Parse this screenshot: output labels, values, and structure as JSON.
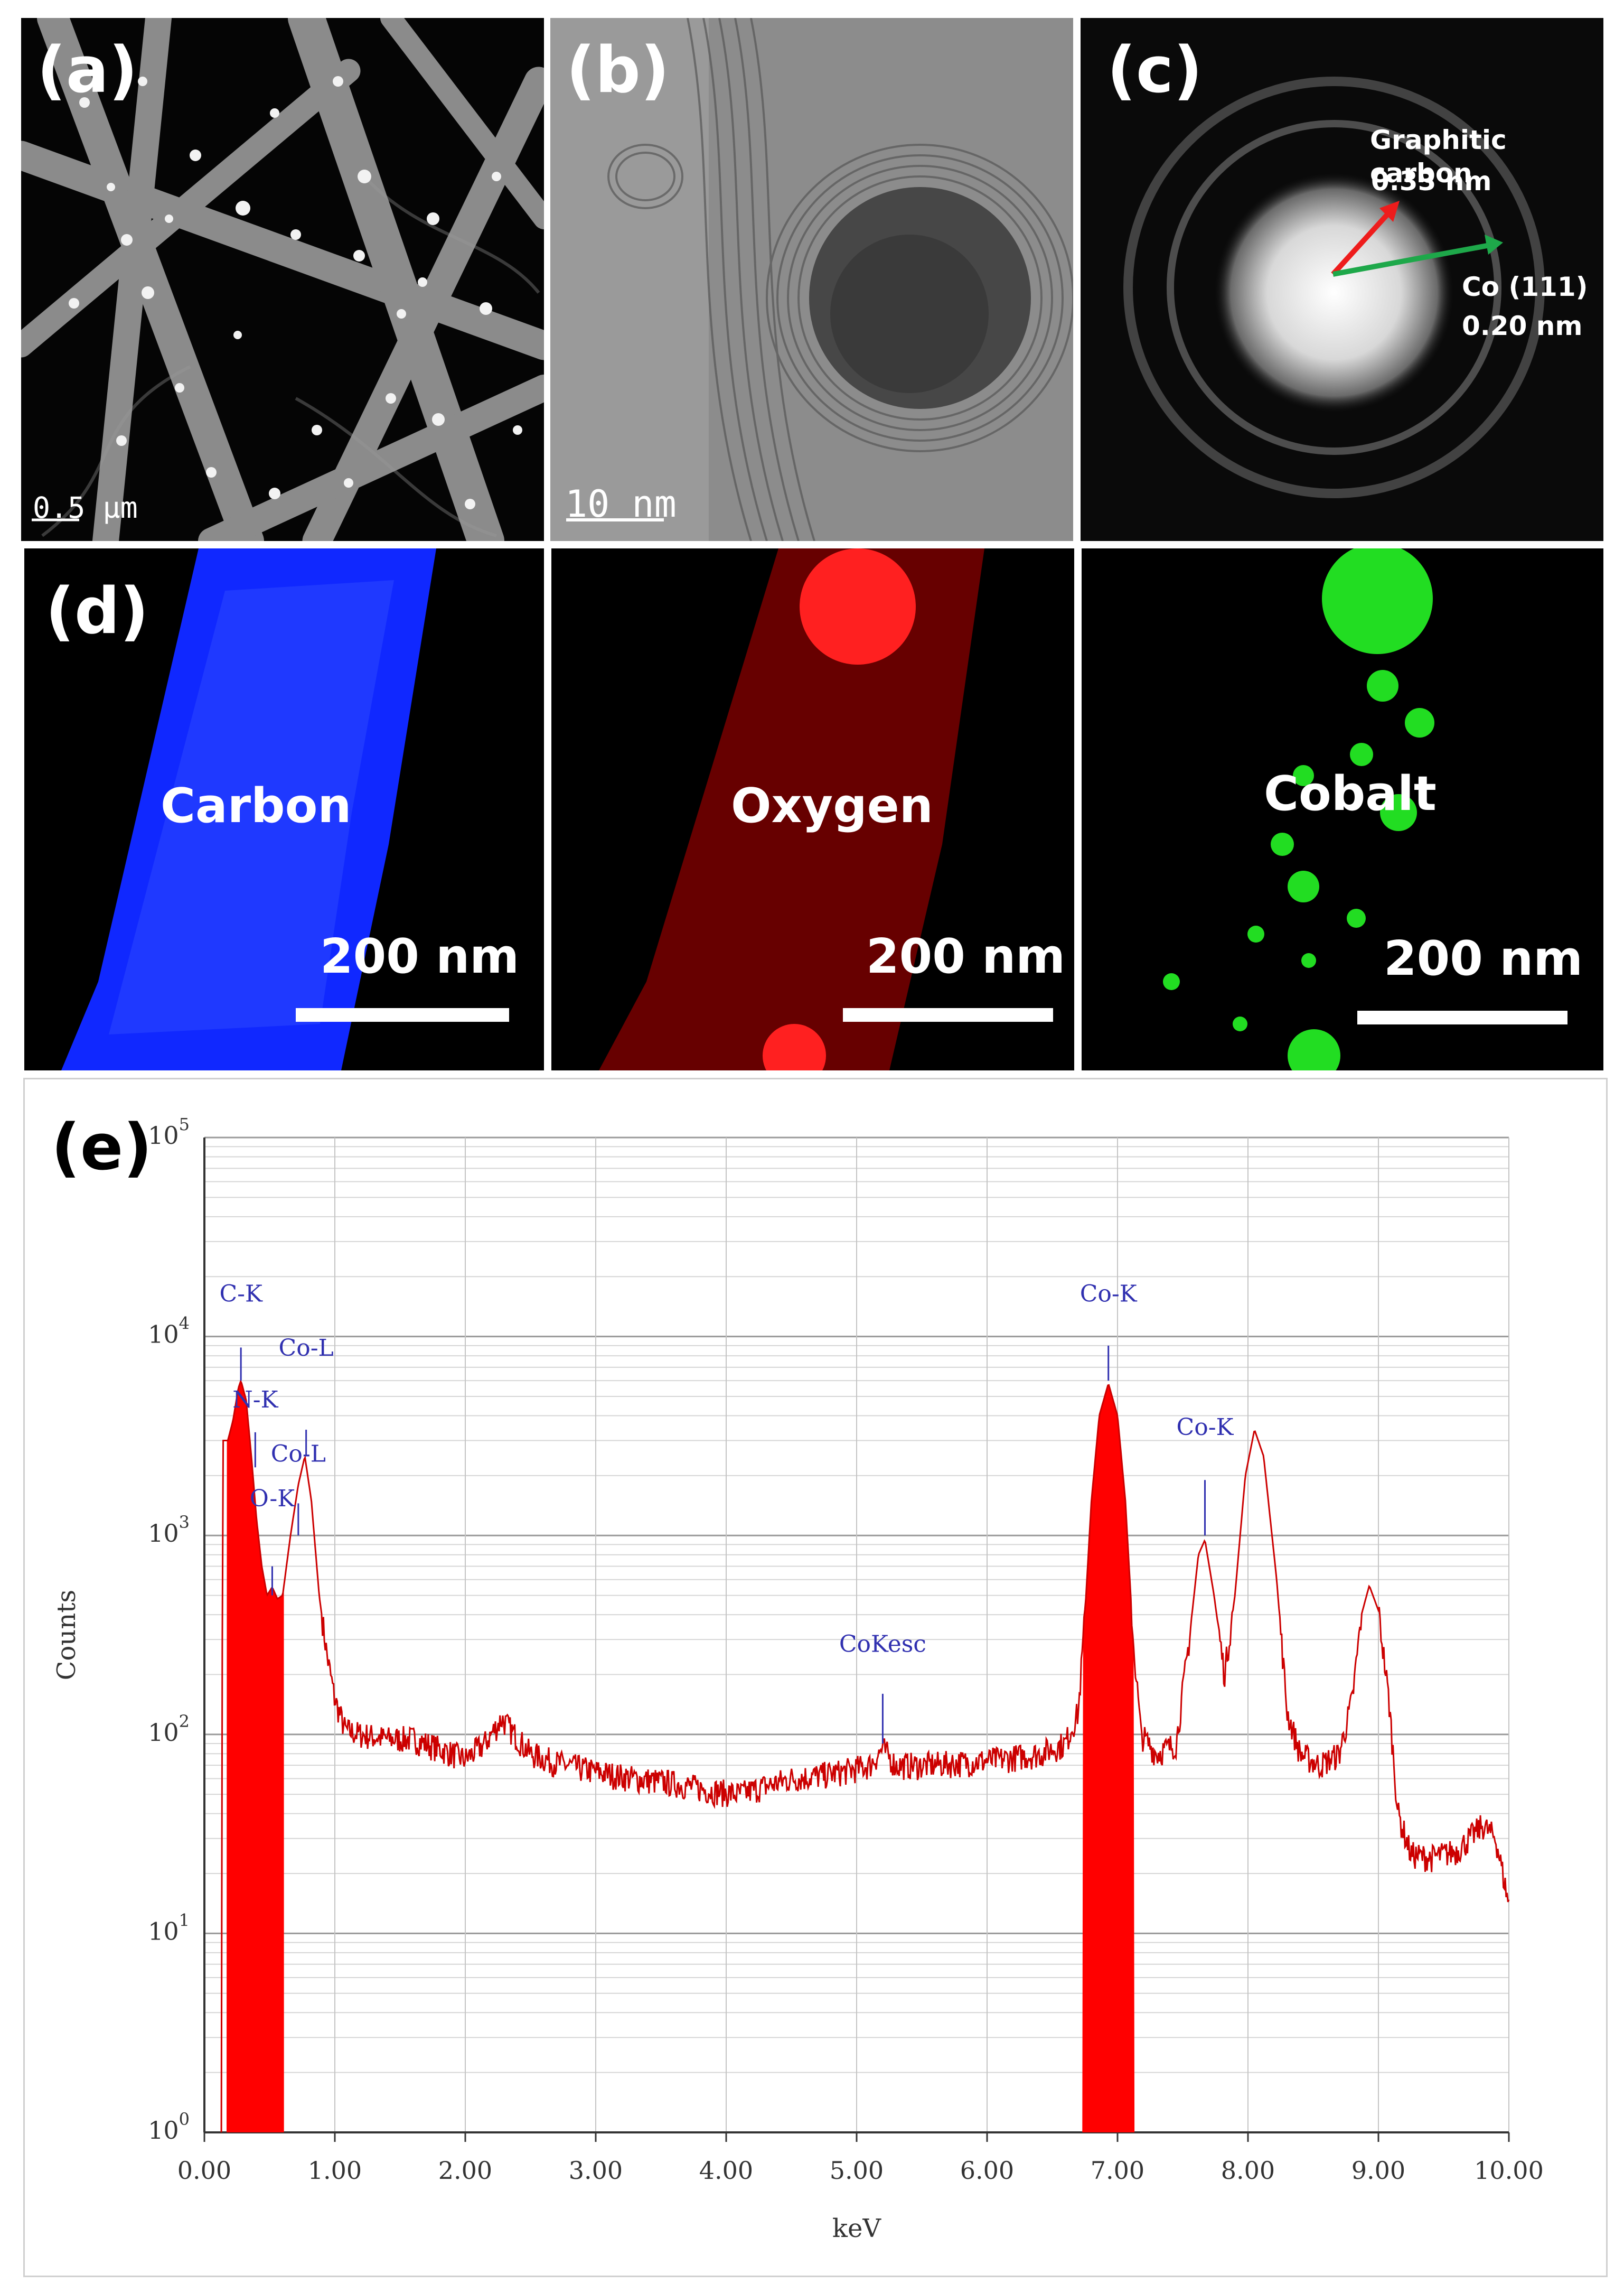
{
  "panels": {
    "a": {
      "label": "(a)",
      "scale_text": "0.5 μm"
    },
    "b": {
      "label": "(b)",
      "scale_text": "10 nm"
    },
    "c": {
      "label": "(c)",
      "annot_graphitic": "Graphitic carbon",
      "annot_graphitic_d": "0.33 nm",
      "annot_co": "Co (111)",
      "annot_co_d": "0.20 nm"
    },
    "d": {
      "label": "(d)",
      "carbon": "Carbon",
      "oxygen": "Oxygen",
      "cobalt": "Cobalt",
      "scale": "200 nm"
    },
    "e": {
      "label": "(e)"
    }
  },
  "colors": {
    "spectrum": "#cc0000",
    "fill": "#ff0000",
    "peak_labels": "#3030b0",
    "carbon_map": "#1028ff",
    "oxygen_map": "#ff2020",
    "cobalt_map": "#22dd22"
  },
  "chart_data": {
    "type": "line",
    "yscale": "log",
    "xlabel": "keV",
    "ylabel": "Counts",
    "xlim": [
      0,
      10
    ],
    "ylim": [
      1,
      100000
    ],
    "x_ticks": [
      "0.00",
      "1.00",
      "2.00",
      "3.00",
      "4.00",
      "5.00",
      "6.00",
      "7.00",
      "8.00",
      "9.00",
      "10.00"
    ],
    "y_ticks": [
      {
        "base": "10",
        "exp": "0"
      },
      {
        "base": "10",
        "exp": "1"
      },
      {
        "base": "10",
        "exp": "2"
      },
      {
        "base": "10",
        "exp": "3"
      },
      {
        "base": "10",
        "exp": "4"
      },
      {
        "base": "10",
        "exp": "5"
      }
    ],
    "grid": true,
    "spectrum_points": [
      [
        0.13,
        1
      ],
      [
        0.14,
        3000
      ],
      [
        0.18,
        3000
      ],
      [
        0.22,
        3800
      ],
      [
        0.26,
        5500
      ],
      [
        0.28,
        6000
      ],
      [
        0.32,
        4800
      ],
      [
        0.36,
        2500
      ],
      [
        0.4,
        1200
      ],
      [
        0.44,
        700
      ],
      [
        0.48,
        500
      ],
      [
        0.52,
        550
      ],
      [
        0.56,
        480
      ],
      [
        0.6,
        500
      ],
      [
        0.66,
        1000
      ],
      [
        0.72,
        1800
      ],
      [
        0.77,
        2500
      ],
      [
        0.82,
        1500
      ],
      [
        0.88,
        500
      ],
      [
        0.94,
        250
      ],
      [
        1.0,
        150
      ],
      [
        1.08,
        105
      ],
      [
        1.2,
        100
      ],
      [
        1.4,
        95
      ],
      [
        1.6,
        95
      ],
      [
        1.8,
        85
      ],
      [
        1.9,
        80
      ],
      [
        2.0,
        75
      ],
      [
        2.15,
        90
      ],
      [
        2.28,
        120
      ],
      [
        2.35,
        105
      ],
      [
        2.5,
        80
      ],
      [
        2.7,
        72
      ],
      [
        3.0,
        65
      ],
      [
        3.3,
        60
      ],
      [
        3.6,
        57
      ],
      [
        3.9,
        52
      ],
      [
        4.1,
        50
      ],
      [
        4.3,
        55
      ],
      [
        4.5,
        60
      ],
      [
        4.7,
        62
      ],
      [
        4.9,
        65
      ],
      [
        5.1,
        70
      ],
      [
        5.2,
        85
      ],
      [
        5.3,
        70
      ],
      [
        5.5,
        70
      ],
      [
        5.8,
        72
      ],
      [
        6.1,
        75
      ],
      [
        6.4,
        80
      ],
      [
        6.6,
        90
      ],
      [
        6.7,
        130
      ],
      [
        6.75,
        400
      ],
      [
        6.8,
        1500
      ],
      [
        6.86,
        4000
      ],
      [
        6.93,
        5800
      ],
      [
        7.0,
        4000
      ],
      [
        7.06,
        1500
      ],
      [
        7.12,
        300
      ],
      [
        7.18,
        100
      ],
      [
        7.3,
        80
      ],
      [
        7.45,
        90
      ],
      [
        7.55,
        300
      ],
      [
        7.62,
        800
      ],
      [
        7.67,
        950
      ],
      [
        7.74,
        500
      ],
      [
        7.82,
        200
      ],
      [
        7.9,
        500
      ],
      [
        7.98,
        2000
      ],
      [
        8.05,
        3400
      ],
      [
        8.12,
        2500
      ],
      [
        8.22,
        600
      ],
      [
        8.3,
        130
      ],
      [
        8.4,
        80
      ],
      [
        8.55,
        70
      ],
      [
        8.7,
        80
      ],
      [
        8.8,
        150
      ],
      [
        8.87,
        400
      ],
      [
        8.93,
        560
      ],
      [
        9.0,
        420
      ],
      [
        9.08,
        150
      ],
      [
        9.15,
        40
      ],
      [
        9.25,
        25
      ],
      [
        9.4,
        24
      ],
      [
        9.6,
        26
      ],
      [
        9.8,
        35
      ],
      [
        9.9,
        30
      ],
      [
        10.0,
        14
      ]
    ],
    "filled_regions": [
      {
        "from": 0.17,
        "to": 0.61
      },
      {
        "from": 6.73,
        "to": 7.13
      }
    ],
    "peak_labels": [
      {
        "text": "C-K",
        "x": 0.28,
        "marker_top": 8800,
        "marker_bottom": 6000,
        "text_y": 15000
      },
      {
        "text": "N-K",
        "x": 0.39,
        "marker_top": 3300,
        "marker_bottom": 2200,
        "text_y": 4400
      },
      {
        "text": "Co-L",
        "x": 0.78,
        "marker_top": 3400,
        "marker_bottom": 2500,
        "text_y": 8000
      },
      {
        "text": "Co-L",
        "x": 0.72,
        "marker_top": 1450,
        "marker_bottom": 1000,
        "text_y": 2350
      },
      {
        "text": "O-K",
        "x": 0.52,
        "marker_top": 700,
        "marker_bottom": 500,
        "text_y": 1400
      },
      {
        "text": "CoKesc",
        "x": 5.2,
        "marker_top": 160,
        "marker_bottom": 90,
        "text_y": 260
      },
      {
        "text": "Co-K",
        "x": 6.93,
        "marker_top": 9000,
        "marker_bottom": 6000,
        "text_y": 15000
      },
      {
        "text": "Co-K",
        "x": 7.67,
        "marker_top": 1900,
        "marker_bottom": 1000,
        "text_y": 3200
      }
    ]
  }
}
